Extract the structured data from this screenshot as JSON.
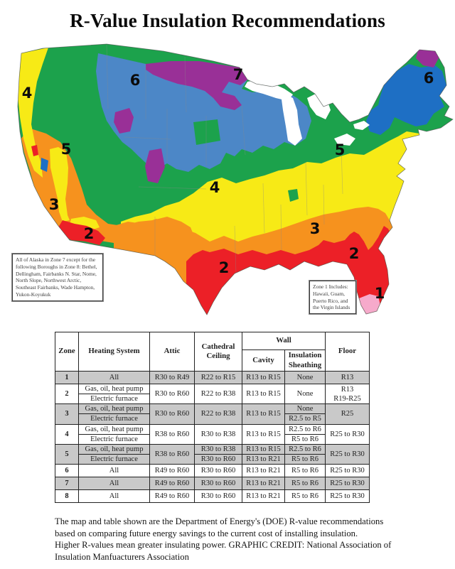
{
  "title": "R-Value Insulation Recommendations",
  "map": {
    "zone_colors": {
      "zone1_pink": "#f6aacb",
      "zone2_red": "#ec2027",
      "zone3_orange": "#f6921e",
      "zone4_yellow": "#f7ea16",
      "zone5_green": "#1ca24c",
      "zone6_west_blue": "#4c87c7",
      "zone6_east_blue": "#1e6fc4",
      "zone7_purple": "#993097",
      "lakes_white": "#ffffff",
      "outline_gray": "#4a4a4a",
      "state_line_gray": "#8a8a8a"
    },
    "labels": [
      {
        "zone": "4",
        "region": "pacific-northwest-coast"
      },
      {
        "zone": "6",
        "region": "northern-rockies"
      },
      {
        "zone": "7",
        "region": "upper-midwest"
      },
      {
        "zone": "6",
        "region": "new-england"
      },
      {
        "zone": "5",
        "region": "great-basin"
      },
      {
        "zone": "5",
        "region": "northeast"
      },
      {
        "zone": "4",
        "region": "central-plains"
      },
      {
        "zone": "3",
        "region": "california"
      },
      {
        "zone": "2",
        "region": "southern-california"
      },
      {
        "zone": "2",
        "region": "south-texas"
      },
      {
        "zone": "3",
        "region": "southeast"
      },
      {
        "zone": "2",
        "region": "gulf-florida"
      },
      {
        "zone": "1",
        "region": "south-florida-tip"
      }
    ],
    "alaska_note": "All of Alaska in Zone 7 except for the following Boroughs in Zone 8: Bethel, Dellingham, Fairbanks N. Star, Nome, North Slope, Northwest Arctic, Southeast Fairbanks, Wade Hampton, Yukon-Koyukuk",
    "zone1_note": "Zone 1 Includes: Hawaii, Guam, Puerto Rico, and the Virgin Islands"
  },
  "table": {
    "headers": {
      "zone": "Zone",
      "heating": "Heating System",
      "attic": "Attic",
      "cathedral": "Cathedral Ceiling",
      "wall": "Wall",
      "cavity": "Cavity",
      "sheathing": "Insulation Sheathing",
      "floor": "Floor"
    },
    "rows": [
      {
        "zone": "1",
        "shaded": true,
        "heating": [
          "All"
        ],
        "attic": "R30 to R49",
        "cathedral": [
          "R22 to R15"
        ],
        "cavity": [
          "R13 to R15"
        ],
        "sheathing": [
          "None"
        ],
        "floor": [
          "R13"
        ]
      },
      {
        "zone": "2",
        "shaded": false,
        "heating": [
          "Gas, oil, heat pump",
          "Electric furnace"
        ],
        "attic": "R30 to R60",
        "cathedral": [
          "R22 to R38"
        ],
        "cavity": [
          "R13 to R15"
        ],
        "sheathing": [
          "None"
        ],
        "floor": [
          "R13",
          "R19-R25"
        ]
      },
      {
        "zone": "3",
        "shaded": true,
        "heating": [
          "Gas, oil, heat pump",
          "Electric furnace"
        ],
        "attic": "R30 to R60",
        "cathedral": [
          "R22 to R38"
        ],
        "cavity": [
          "R13 to R15"
        ],
        "sheathing": [
          "None",
          "R2.5 to R5"
        ],
        "floor": [
          "R25"
        ]
      },
      {
        "zone": "4",
        "shaded": false,
        "heating": [
          "Gas, oil, heat pump",
          "Electric furnace"
        ],
        "attic": "R38 to R60",
        "cathedral": [
          "R30 to R38"
        ],
        "cavity": [
          "R13 to R15"
        ],
        "sheathing": [
          "R2.5 to R6",
          "R5 to R6"
        ],
        "floor": [
          "R25 to R30"
        ]
      },
      {
        "zone": "5",
        "shaded": true,
        "heating": [
          "Gas, oil, heat pump",
          "Electric furnace"
        ],
        "attic": "R38 to R60",
        "cathedral": [
          "R30 to R38",
          "R30 to R60"
        ],
        "cavity": [
          "R13 to R15",
          "R13 to R21"
        ],
        "sheathing": [
          "R2.5 to R6",
          "R5 to R6"
        ],
        "floor": [
          "R25 to R30"
        ]
      },
      {
        "zone": "6",
        "shaded": false,
        "heating": [
          "All"
        ],
        "attic": "R49 to R60",
        "cathedral": [
          "R30 to R60"
        ],
        "cavity": [
          "R13 to R21"
        ],
        "sheathing": [
          "R5 to R6"
        ],
        "floor": [
          "R25 to R30"
        ]
      },
      {
        "zone": "7",
        "shaded": true,
        "heating": [
          "All"
        ],
        "attic": "R49 to R60",
        "cathedral": [
          "R30 to R60"
        ],
        "cavity": [
          "R13 to R21"
        ],
        "sheathing": [
          "R5 to R6"
        ],
        "floor": [
          "R25 to R30"
        ]
      },
      {
        "zone": "8",
        "shaded": false,
        "heating": [
          "All"
        ],
        "attic": "R49 to R60",
        "cathedral": [
          "R30 to R60"
        ],
        "cavity": [
          "R13 to R21"
        ],
        "sheathing": [
          "R5 to R6"
        ],
        "floor": [
          "R25 to R30"
        ]
      }
    ]
  },
  "caption": "The map and table shown are the Department of Energy's (DOE) R-value recommendations\nbased on comparing future energy savings to the current cost of installing insulation.\nHigher R-values mean greater insulating power. GRAPHIC CREDIT: National Association of\nInsulation Manfuacturers Association"
}
